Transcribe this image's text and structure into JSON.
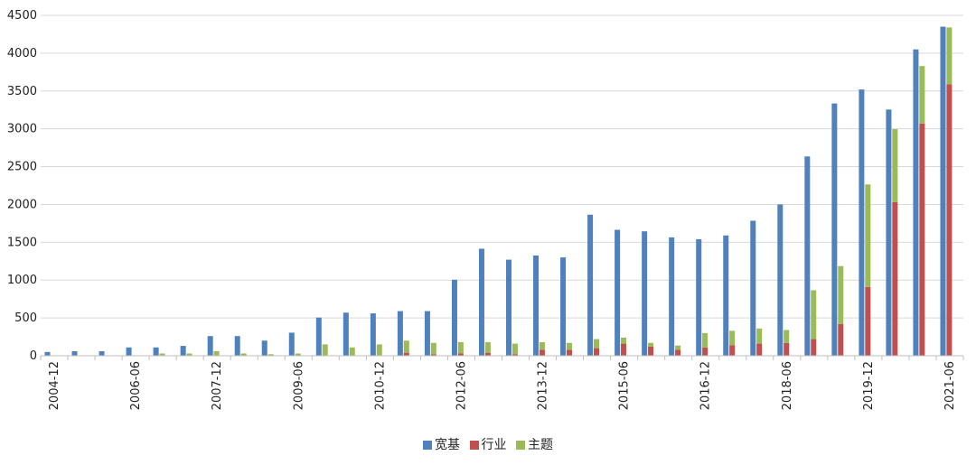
{
  "chart_data": {
    "type": "bar",
    "ylim": [
      0,
      4500
    ],
    "y_ticks": [
      0,
      500,
      1000,
      1500,
      2000,
      2500,
      3000,
      3500,
      4000,
      4500
    ],
    "grid": true,
    "legend_position": "bottom",
    "categories": [
      "2004-12",
      "2005-06",
      "2005-12",
      "2006-06",
      "2006-12",
      "2007-06",
      "2007-12",
      "2008-06",
      "2008-12",
      "2009-06",
      "2009-12",
      "2010-06",
      "2010-12",
      "2011-06",
      "2011-12",
      "2012-06",
      "2012-12",
      "2013-06",
      "2013-12",
      "2014-06",
      "2014-12",
      "2015-06",
      "2015-12",
      "2016-06",
      "2016-12",
      "2017-06",
      "2017-12",
      "2018-06",
      "2018-12",
      "2019-06",
      "2019-12",
      "2020-06",
      "2020-12",
      "2021-06"
    ],
    "x_tick_labels": [
      "2004-12",
      "",
      "",
      "2006-06",
      "",
      "",
      "2007-12",
      "",
      "",
      "2009-06",
      "",
      "",
      "2010-12",
      "",
      "",
      "2012-06",
      "",
      "",
      "2013-12",
      "",
      "",
      "2015-06",
      "",
      "",
      "2016-12",
      "",
      "",
      "2018-06",
      "",
      "",
      "2019-12",
      "",
      "",
      "2021-06"
    ],
    "series": [
      {
        "name": "宽基",
        "color": "#4f81bd",
        "values": [
          50,
          60,
          60,
          110,
          110,
          130,
          260,
          260,
          200,
          305,
          505,
          570,
          560,
          590,
          590,
          1005,
          1415,
          1270,
          1325,
          1300,
          1865,
          1665,
          1645,
          1565,
          1540,
          1590,
          1785,
          2000,
          2635,
          3335,
          3520,
          3255,
          4050,
          4350
        ]
      },
      {
        "name": "行业",
        "color": "#c0504d",
        "values": [
          0,
          0,
          0,
          0,
          0,
          0,
          0,
          0,
          0,
          0,
          0,
          0,
          0,
          40,
          20,
          30,
          40,
          20,
          80,
          80,
          100,
          160,
          120,
          80,
          110,
          140,
          160,
          170,
          220,
          420,
          910,
          2030,
          3070,
          3590
        ]
      },
      {
        "name": "主题",
        "color": "#9bbb59",
        "values": [
          0,
          0,
          0,
          0,
          30,
          30,
          60,
          30,
          20,
          30,
          150,
          110,
          150,
          160,
          150,
          150,
          140,
          140,
          100,
          90,
          120,
          80,
          50,
          55,
          190,
          190,
          200,
          170,
          645,
          765,
          1355,
          965,
          760,
          750
        ]
      }
    ]
  }
}
